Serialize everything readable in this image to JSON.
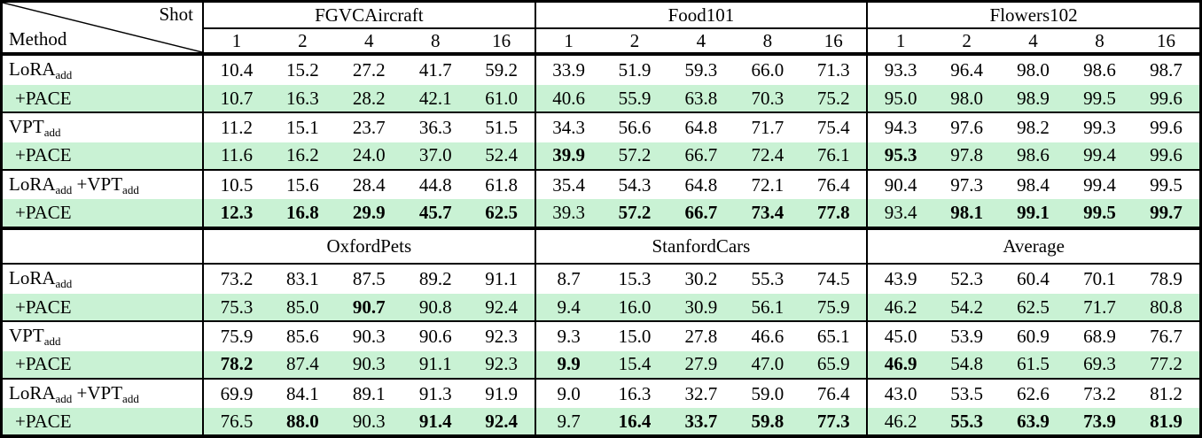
{
  "corner": {
    "shot_label": "Shot",
    "method_label": "Method"
  },
  "shots": [
    "1",
    "2",
    "4",
    "8",
    "16"
  ],
  "colors": {
    "pace_row_bg": "#c9f2d4",
    "border": "#000000",
    "text": "#000000"
  },
  "sections": [
    {
      "datasets": [
        "FGVCAircraft",
        "Food101",
        "Flowers102"
      ],
      "rows": [
        {
          "method": [
            [
              "LoRA",
              false
            ],
            [
              "add",
              true
            ]
          ],
          "pace": false,
          "group_start": true,
          "values": [
            "10.4",
            "15.2",
            "27.2",
            "41.7",
            "59.2",
            "33.9",
            "51.9",
            "59.3",
            "66.0",
            "71.3",
            "93.3",
            "96.4",
            "98.0",
            "98.6",
            "98.7"
          ],
          "bold": []
        },
        {
          "method": [
            [
              "+PACE",
              false
            ]
          ],
          "pace": true,
          "group_start": false,
          "values": [
            "10.7",
            "16.3",
            "28.2",
            "42.1",
            "61.0",
            "40.6",
            "55.9",
            "63.8",
            "70.3",
            "75.2",
            "95.0",
            "98.0",
            "98.9",
            "99.5",
            "99.6"
          ],
          "bold": []
        },
        {
          "method": [
            [
              "VPT",
              false
            ],
            [
              "add",
              true
            ]
          ],
          "pace": false,
          "group_start": true,
          "values": [
            "11.2",
            "15.1",
            "23.7",
            "36.3",
            "51.5",
            "34.3",
            "56.6",
            "64.8",
            "71.7",
            "75.4",
            "94.3",
            "97.6",
            "98.2",
            "99.3",
            "99.6"
          ],
          "bold": []
        },
        {
          "method": [
            [
              "+PACE",
              false
            ]
          ],
          "pace": true,
          "group_start": false,
          "values": [
            "11.6",
            "16.2",
            "24.0",
            "37.0",
            "52.4",
            "39.9",
            "57.2",
            "66.7",
            "72.4",
            "76.1",
            "95.3",
            "97.8",
            "98.6",
            "99.4",
            "99.6"
          ],
          "bold": [
            5,
            10
          ]
        },
        {
          "method": [
            [
              "LoRA",
              false
            ],
            [
              "add",
              true
            ],
            [
              " +VPT",
              false
            ],
            [
              "add",
              true
            ]
          ],
          "pace": false,
          "group_start": true,
          "values": [
            "10.5",
            "15.6",
            "28.4",
            "44.8",
            "61.8",
            "35.4",
            "54.3",
            "64.8",
            "72.1",
            "76.4",
            "90.4",
            "97.3",
            "98.4",
            "99.4",
            "99.5"
          ],
          "bold": []
        },
        {
          "method": [
            [
              "+PACE",
              false
            ]
          ],
          "pace": true,
          "group_start": false,
          "values": [
            "12.3",
            "16.8",
            "29.9",
            "45.7",
            "62.5",
            "39.3",
            "57.2",
            "66.7",
            "73.4",
            "77.8",
            "93.4",
            "98.1",
            "99.1",
            "99.5",
            "99.7"
          ],
          "bold": [
            0,
            1,
            2,
            3,
            4,
            6,
            7,
            8,
            9,
            11,
            12,
            13,
            14
          ]
        }
      ]
    },
    {
      "datasets": [
        "OxfordPets",
        "StanfordCars",
        "Average"
      ],
      "rows": [
        {
          "method": [
            [
              "LoRA",
              false
            ],
            [
              "add",
              true
            ]
          ],
          "pace": false,
          "group_start": true,
          "values": [
            "73.2",
            "83.1",
            "87.5",
            "89.2",
            "91.1",
            "8.7",
            "15.3",
            "30.2",
            "55.3",
            "74.5",
            "43.9",
            "52.3",
            "60.4",
            "70.1",
            "78.9"
          ],
          "bold": []
        },
        {
          "method": [
            [
              "+PACE",
              false
            ]
          ],
          "pace": true,
          "group_start": false,
          "values": [
            "75.3",
            "85.0",
            "90.7",
            "90.8",
            "92.4",
            "9.4",
            "16.0",
            "30.9",
            "56.1",
            "75.9",
            "46.2",
            "54.2",
            "62.5",
            "71.7",
            "80.8"
          ],
          "bold": [
            2
          ]
        },
        {
          "method": [
            [
              "VPT",
              false
            ],
            [
              "add",
              true
            ]
          ],
          "pace": false,
          "group_start": true,
          "values": [
            "75.9",
            "85.6",
            "90.3",
            "90.6",
            "92.3",
            "9.3",
            "15.0",
            "27.8",
            "46.6",
            "65.1",
            "45.0",
            "53.9",
            "60.9",
            "68.9",
            "76.7"
          ],
          "bold": []
        },
        {
          "method": [
            [
              "+PACE",
              false
            ]
          ],
          "pace": true,
          "group_start": false,
          "values": [
            "78.2",
            "87.4",
            "90.3",
            "91.1",
            "92.3",
            "9.9",
            "15.4",
            "27.9",
            "47.0",
            "65.9",
            "46.9",
            "54.8",
            "61.5",
            "69.3",
            "77.2"
          ],
          "bold": [
            0,
            5,
            10
          ]
        },
        {
          "method": [
            [
              "LoRA",
              false
            ],
            [
              "add",
              true
            ],
            [
              " +VPT",
              false
            ],
            [
              "add",
              true
            ]
          ],
          "pace": false,
          "group_start": true,
          "values": [
            "69.9",
            "84.1",
            "89.1",
            "91.3",
            "91.9",
            "9.0",
            "16.3",
            "32.7",
            "59.0",
            "76.4",
            "43.0",
            "53.5",
            "62.6",
            "73.2",
            "81.2"
          ],
          "bold": []
        },
        {
          "method": [
            [
              "+PACE",
              false
            ]
          ],
          "pace": true,
          "group_start": false,
          "values": [
            "76.5",
            "88.0",
            "90.3",
            "91.4",
            "92.4",
            "9.7",
            "16.4",
            "33.7",
            "59.8",
            "77.3",
            "46.2",
            "55.3",
            "63.9",
            "73.9",
            "81.9"
          ],
          "bold": [
            1,
            3,
            4,
            6,
            7,
            8,
            9,
            11,
            12,
            13,
            14
          ]
        }
      ]
    }
  ]
}
